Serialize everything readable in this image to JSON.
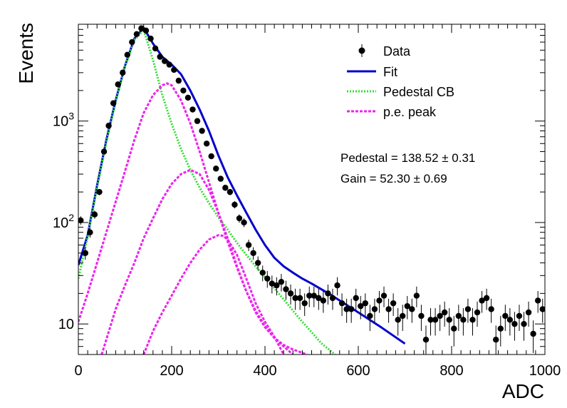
{
  "chart_data": {
    "type": "scatter",
    "xlabel": "ADC",
    "ylabel": "Events",
    "xlim": [
      0,
      1000
    ],
    "ylim": [
      5,
      9000
    ],
    "yscale": "log",
    "x_ticks": [
      0,
      200,
      400,
      600,
      800,
      1000
    ],
    "y_ticks": [
      {
        "value": 10,
        "label": "10"
      },
      {
        "value": 100,
        "label": "10^2"
      },
      {
        "value": 1000,
        "label": "10^3"
      }
    ],
    "legend": {
      "position": "top-right",
      "entries": [
        {
          "label": "Data",
          "style": "marker",
          "color": "#000000"
        },
        {
          "label": "Fit",
          "style": "solid",
          "color": "#0000cc"
        },
        {
          "label": "Pedestal CB",
          "style": "dotted",
          "color": "#33dd33"
        },
        {
          "label": "p.e. peak",
          "style": "dashed",
          "color": "#ee22ee"
        }
      ]
    },
    "annotations": [
      {
        "text": "Pedestal = 138.52 ± 0.31"
      },
      {
        "text": "Gain = 52.30 ± 0.69"
      }
    ],
    "series": [
      {
        "name": "Data",
        "kind": "points_with_errors",
        "color": "#000000",
        "x": [
          5,
          15,
          25,
          35,
          45,
          55,
          65,
          75,
          85,
          95,
          105,
          115,
          125,
          135,
          145,
          155,
          165,
          175,
          185,
          195,
          205,
          215,
          225,
          235,
          245,
          255,
          265,
          275,
          285,
          295,
          305,
          315,
          325,
          335,
          345,
          355,
          365,
          375,
          385,
          395,
          405,
          415,
          425,
          435,
          445,
          455,
          465,
          475,
          485,
          495,
          505,
          515,
          525,
          535,
          545,
          555,
          565,
          575,
          585,
          595,
          605,
          615,
          625,
          635,
          645,
          655,
          665,
          675,
          685,
          695,
          705,
          715,
          725,
          735,
          745,
          755,
          765,
          775,
          785,
          795,
          805,
          815,
          825,
          835,
          845,
          855,
          865,
          875,
          885,
          895,
          905,
          915,
          925,
          935,
          945,
          955,
          965,
          975,
          985,
          995
        ],
        "y": [
          105,
          50,
          80,
          120,
          200,
          500,
          900,
          1500,
          2300,
          3000,
          4500,
          6000,
          7200,
          8200,
          7800,
          6500,
          5200,
          4300,
          3900,
          3600,
          3200,
          2500,
          2000,
          1700,
          1300,
          1000,
          800,
          600,
          450,
          340,
          270,
          220,
          200,
          150,
          110,
          100,
          60,
          50,
          40,
          32,
          28,
          25,
          24,
          26,
          22,
          20,
          18,
          18,
          16,
          19,
          19,
          18,
          17,
          20,
          18,
          24,
          16,
          14,
          14,
          18,
          15,
          16,
          12,
          14,
          17,
          19,
          14,
          16,
          11,
          12,
          15,
          14,
          19,
          12,
          7,
          11,
          11,
          12,
          13,
          11,
          9,
          12,
          11,
          14,
          11,
          13,
          17,
          18,
          14,
          7,
          9,
          12,
          11,
          10,
          12,
          10,
          13,
          8,
          17,
          14
        ]
      },
      {
        "name": "Fit",
        "kind": "line",
        "color": "#0000cc",
        "x": [
          0,
          20,
          40,
          60,
          80,
          100,
          120,
          140,
          160,
          180,
          200,
          220,
          240,
          260,
          280,
          300,
          320,
          340,
          360,
          380,
          400,
          420,
          440,
          460,
          480,
          500,
          540,
          600,
          650,
          700
        ],
        "y": [
          38,
          75,
          230,
          650,
          1600,
          3500,
          6500,
          8300,
          5800,
          4300,
          3600,
          2900,
          2000,
          1300,
          800,
          460,
          280,
          185,
          125,
          85,
          60,
          45,
          37,
          32,
          28,
          25,
          19.5,
          13,
          9.2,
          6.4
        ]
      },
      {
        "name": "Pedestal CB",
        "kind": "line",
        "color": "#33dd33",
        "x": [
          0,
          20,
          40,
          60,
          80,
          100,
          120,
          140,
          160,
          180,
          200,
          220,
          240,
          260,
          280,
          300,
          320,
          340,
          360,
          380,
          400,
          420,
          440,
          460,
          480,
          500,
          520,
          550
        ],
        "y": [
          28,
          72,
          220,
          620,
          1550,
          3450,
          6300,
          7900,
          4000,
          1800,
          940,
          530,
          330,
          220,
          155,
          113,
          85,
          63,
          48,
          37,
          29,
          22.5,
          17.5,
          13.5,
          10.5,
          8.3,
          6.5,
          5
        ]
      },
      {
        "name": "p.e. peak 1",
        "kind": "line",
        "color": "#ee22ee",
        "x": [
          0,
          20,
          40,
          60,
          80,
          100,
          120,
          140,
          160,
          180,
          190,
          200,
          220,
          240,
          260,
          280,
          300,
          320,
          340,
          360,
          380,
          400,
          420,
          440,
          460,
          480,
          490
        ],
        "y": [
          10.5,
          20,
          40,
          80,
          160,
          320,
          650,
          1200,
          1800,
          2250,
          2350,
          2250,
          1600,
          950,
          500,
          250,
          125,
          65,
          36,
          21,
          13.5,
          9.5,
          7.3,
          6.2,
          5.6,
          5.2,
          5
        ]
      },
      {
        "name": "p.e. peak 2",
        "kind": "line",
        "color": "#ee22ee",
        "x": [
          50,
          80,
          100,
          120,
          140,
          160,
          180,
          200,
          220,
          240,
          260,
          280,
          300,
          320,
          340,
          360,
          380,
          400,
          420,
          440,
          460
        ],
        "y": [
          5,
          14,
          24,
          40,
          70,
          110,
          170,
          240,
          300,
          330,
          300,
          210,
          125,
          70,
          37,
          21,
          13,
          9.3,
          7.3,
          6,
          5
        ]
      },
      {
        "name": "p.e. peak 3",
        "kind": "line",
        "color": "#ee22ee",
        "x": [
          140,
          160,
          180,
          200,
          220,
          240,
          260,
          280,
          300,
          310,
          320,
          340,
          360,
          380,
          400,
          420,
          440
        ],
        "y": [
          5,
          8.5,
          13,
          19,
          28,
          40,
          54,
          68,
          75,
          74,
          68,
          48,
          28,
          16,
          10.5,
          7.5,
          5
        ]
      }
    ]
  }
}
